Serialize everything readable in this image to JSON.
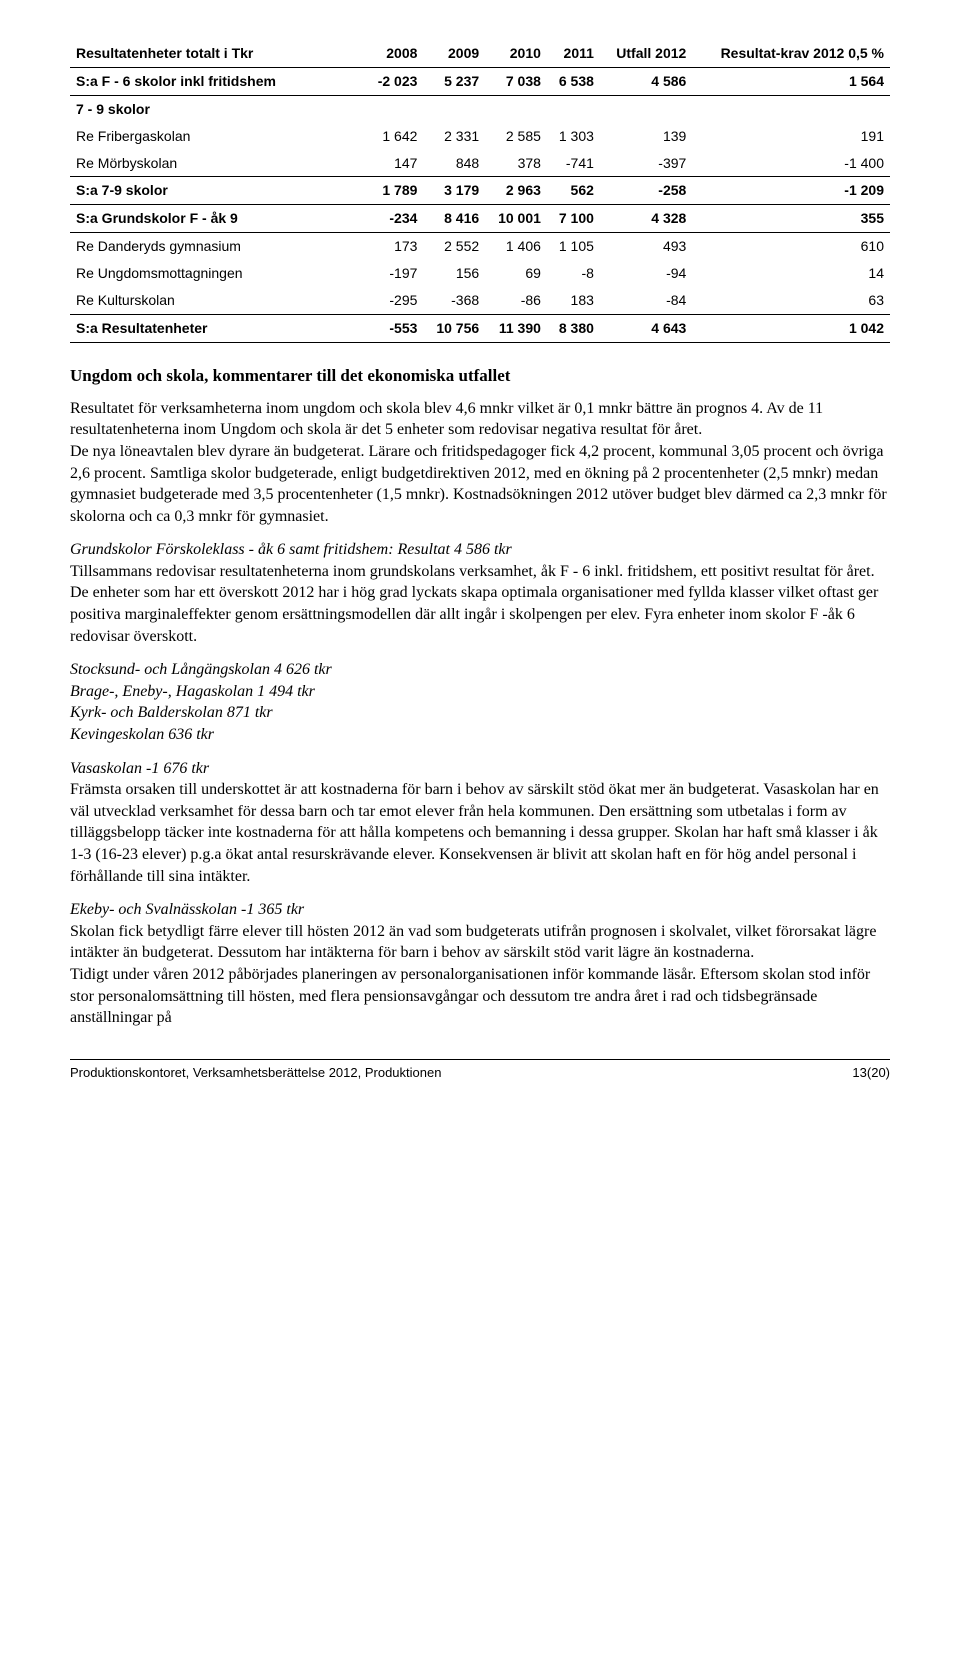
{
  "table": {
    "header": {
      "c0": "Resultatenheter totalt i Tkr",
      "c1": "2008",
      "c2": "2009",
      "c3": "2010",
      "c4": "2011",
      "c5": "Utfall 2012",
      "c6": "Resultat-krav 2012 0,5 %"
    },
    "rows": [
      {
        "cls": "sum",
        "c0": "S:a F - 6 skolor inkl fritidshem",
        "c1": "-2 023",
        "c2": "5 237",
        "c3": "7 038",
        "c4": "6 538",
        "c5": "4 586",
        "c6": "1 564"
      },
      {
        "cls": "section-head",
        "c0": "7 - 9 skolor",
        "c1": "",
        "c2": "",
        "c3": "",
        "c4": "",
        "c5": "",
        "c6": ""
      },
      {
        "cls": "",
        "c0": "Re Fribergaskolan",
        "c1": "1 642",
        "c2": "2 331",
        "c3": "2 585",
        "c4": "1 303",
        "c5": "139",
        "c6": "191"
      },
      {
        "cls": "",
        "c0": "Re Mörbyskolan",
        "c1": "147",
        "c2": "848",
        "c3": "378",
        "c4": "-741",
        "c5": "-397",
        "c6": "-1 400"
      },
      {
        "cls": "sum",
        "c0": "S:a 7-9 skolor",
        "c1": "1 789",
        "c2": "3 179",
        "c3": "2 963",
        "c4": "562",
        "c5": "-258",
        "c6": "-1 209"
      },
      {
        "cls": "sum",
        "c0": "S:a Grundskolor F - åk 9",
        "c1": "-234",
        "c2": "8 416",
        "c3": "10 001",
        "c4": "7 100",
        "c5": "4 328",
        "c6": "355"
      },
      {
        "cls": "",
        "c0": "Re Danderyds gymnasium",
        "c1": "173",
        "c2": "2 552",
        "c3": "1 406",
        "c4": "1 105",
        "c5": "493",
        "c6": "610"
      },
      {
        "cls": "",
        "c0": "Re Ungdomsmottagningen",
        "c1": "-197",
        "c2": "156",
        "c3": "69",
        "c4": "-8",
        "c5": "-94",
        "c6": "14"
      },
      {
        "cls": "",
        "c0": "Re Kulturskolan",
        "c1": "-295",
        "c2": "-368",
        "c3": "-86",
        "c4": "183",
        "c5": "-84",
        "c6": "63"
      },
      {
        "cls": "grand",
        "c0": "S:a Resultatenheter",
        "c1": "-553",
        "c2": "10 756",
        "c3": "11 390",
        "c4": "8 380",
        "c5": "4 643",
        "c6": "1 042"
      }
    ]
  },
  "headings": {
    "h1": "Ungdom och skola, kommentarer till det ekonomiska utfallet"
  },
  "paras": {
    "p1": "Resultatet för verksamheterna inom ungdom och skola blev 4,6 mnkr vilket är 0,1 mnkr bättre än prognos 4. Av de 11 resultatenheterna inom Ungdom och skola är det 5 enheter som redovisar negativa resultat för året.",
    "p1b": "De nya löneavtalen blev dyrare än budgeterat. Lärare och fritidspedagoger fick 4,2 procent, kommunal 3,05 procent och övriga 2,6 procent. Samtliga skolor budgeterade, enligt budgetdirektiven 2012, med en ökning på 2 procentenheter (2,5 mnkr) medan gymnasiet budgeterade med 3,5 procentenheter (1,5 mnkr). Kostnadsökningen 2012 utöver budget blev därmed ca 2,3 mnkr för skolorna och ca 0,3 mnkr för gymnasiet.",
    "p2_lead": "Grundskolor Förskoleklass - åk 6 samt fritidshem: Resultat 4 586 tkr",
    "p2": "Tillsammans redovisar resultatenheterna inom grundskolans verksamhet, åk F - 6 inkl. fritidshem, ett positivt resultat för året. De enheter som har ett överskott 2012 har i hög grad lyckats skapa optimala organisationer med fyllda klasser vilket oftast ger positiva marginaleffekter genom ersättningsmodellen där allt ingår i skolpengen per elev. Fyra enheter inom skolor F -åk 6 redovisar överskott.",
    "school1": "Stocksund- och Långängskolan 4 626 tkr",
    "school2": "Brage-, Eneby-, Hagaskolan 1 494 tkr",
    "school3": "Kyrk- och Balderskolan 871 tkr",
    "school4": "Kevingeskolan 636 tkr",
    "p3_lead": "Vasaskolan -1 676 tkr",
    "p3": "Främsta orsaken till underskottet är att kostnaderna för barn i behov av särskilt stöd ökat mer än budgeterat. Vasaskolan har en väl utvecklad verksamhet för dessa barn och tar emot elever från hela kommunen. Den ersättning som utbetalas i form av tilläggsbelopp täcker inte kostnaderna för att hålla kompetens och bemanning i dessa grupper. Skolan har haft små klasser i åk 1-3 (16-23 elever) p.g.a ökat antal resurskrävande elever. Konsekvensen är blivit att skolan haft en för hög andel personal i förhållande till sina intäkter.",
    "p4_lead": "Ekeby- och Svalnässkolan -1 365 tkr",
    "p4": "Skolan fick betydligt färre elever till hösten 2012 än vad som budgeterats utifrån prognosen i skolvalet, vilket förorsakat lägre intäkter än budgeterat. Dessutom har intäkterna för barn i behov av särskilt stöd varit lägre än kostnaderna.",
    "p4b": "Tidigt under våren 2012 påbörjades planeringen av personalorganisationen inför kommande läsår. Eftersom skolan stod inför stor personalomsättning till hösten, med flera pensionsavgångar och dessutom tre andra året i rad och tidsbegränsade anställningar på"
  },
  "footer": {
    "left": "Produktionskontoret, Verksamhetsberättelse 2012, Produktionen",
    "right": "13(20)"
  }
}
